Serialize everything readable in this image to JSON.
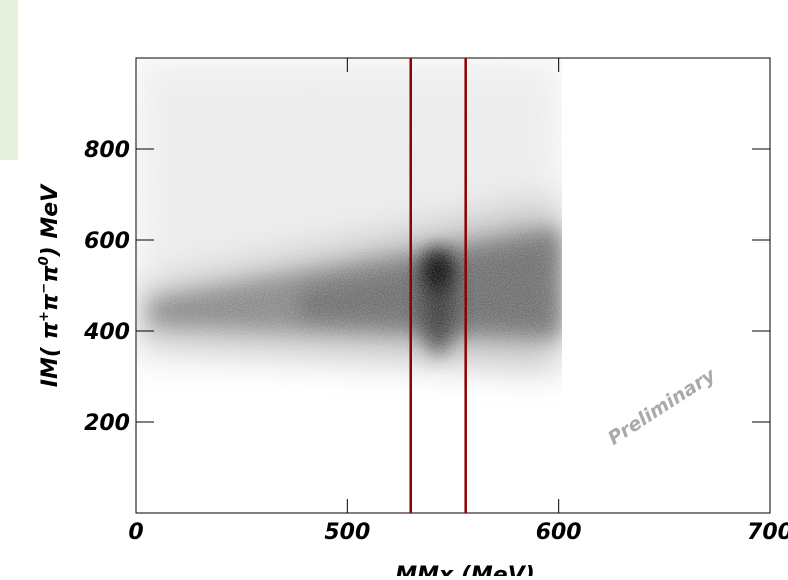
{
  "chart_data": {
    "type": "hist2d",
    "x_label": "MMx (MeV)",
    "y_label_parts": [
      "IM( π",
      "+",
      "π",
      "−",
      "π",
      "0",
      ") MeV"
    ],
    "watermark": "Preliminary",
    "xlim": [
      400,
      700
    ],
    "xticks": [
      {
        "value": 400,
        "label": "0"
      },
      500,
      600,
      700
    ],
    "ylim": [
      0,
      1000
    ],
    "yticks": [
      200,
      400,
      600,
      800
    ],
    "cut_lines": [
      530,
      556
    ],
    "cut_color": "#8b0000"
  }
}
